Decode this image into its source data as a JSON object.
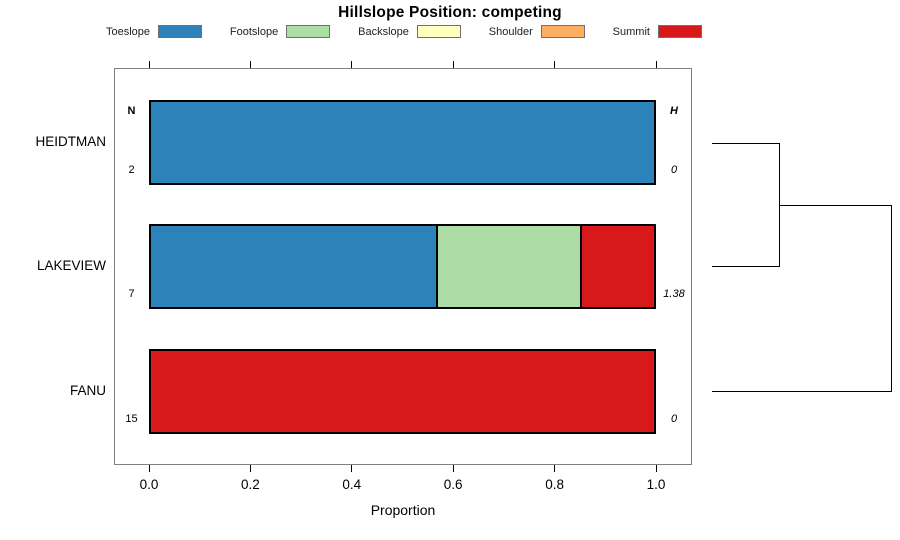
{
  "title": "Hillslope Position: competing",
  "legend": [
    {
      "label": "Toeslope",
      "color": "#2B83BA"
    },
    {
      "label": "Footslope",
      "color": "#ABDDA4"
    },
    {
      "label": "Backslope",
      "color": "#FFFFBF"
    },
    {
      "label": "Shoulder",
      "color": "#FDAE61"
    },
    {
      "label": "Summit",
      "color": "#D7191C"
    }
  ],
  "axis": {
    "label": "Proportion",
    "tick_labels": [
      "0.0",
      "0.2",
      "0.4",
      "0.6",
      "0.8",
      "1.0"
    ]
  },
  "table": {
    "n_header": "N",
    "h_header": "H"
  },
  "rows": [
    {
      "name": "HEIDTMAN",
      "n": "2",
      "h": "0",
      "segments": [
        {
          "class": "Toeslope",
          "value": 1
        }
      ]
    },
    {
      "name": "LAKEVIEW",
      "n": "7",
      "h": "1.38",
      "segments": [
        {
          "class": "Toeslope",
          "value": 0.5714
        },
        {
          "class": "Footslope",
          "value": 0.2857
        },
        {
          "class": "Summit",
          "value": 0.1429
        }
      ]
    },
    {
      "name": "FANU",
      "n": "15",
      "h": "0",
      "segments": [
        {
          "class": "Summit",
          "value": 1
        }
      ]
    }
  ],
  "chart_data": {
    "type": "bar",
    "subtype": "horizontal-stacked-proportion",
    "title": "Hillslope Position: competing",
    "xlabel": "Proportion",
    "ylabel": "",
    "xlim": [
      0,
      1
    ],
    "xticks": [
      0.0,
      0.2,
      0.4,
      0.6,
      0.8,
      1.0
    ],
    "grid": false,
    "legend_position": "top",
    "categories": [
      "HEIDTMAN",
      "LAKEVIEW",
      "FANU"
    ],
    "series": [
      {
        "name": "Toeslope",
        "color": "#2B83BA",
        "values": [
          1.0,
          0.5714,
          0
        ]
      },
      {
        "name": "Footslope",
        "color": "#ABDDA4",
        "values": [
          0,
          0.2857,
          0
        ]
      },
      {
        "name": "Backslope",
        "color": "#FFFFBF",
        "values": [
          0,
          0,
          0
        ]
      },
      {
        "name": "Shoulder",
        "color": "#FDAE61",
        "values": [
          0,
          0,
          0
        ]
      },
      {
        "name": "Summit",
        "color": "#D7191C",
        "values": [
          0,
          0.1429,
          1.0
        ]
      }
    ],
    "annotations": {
      "N_column_header": "N",
      "H_column_header": "H",
      "N_values": [
        2,
        7,
        15
      ],
      "H_values": [
        "0",
        "1.38",
        "0"
      ]
    },
    "dendrogram": {
      "description": "right-side cluster tree",
      "merges": [
        {
          "members": [
            "HEIDTMAN",
            "LAKEVIEW"
          ]
        },
        {
          "members": [
            "HEIDTMAN+LAKEVIEW",
            "FANU"
          ]
        }
      ]
    }
  }
}
